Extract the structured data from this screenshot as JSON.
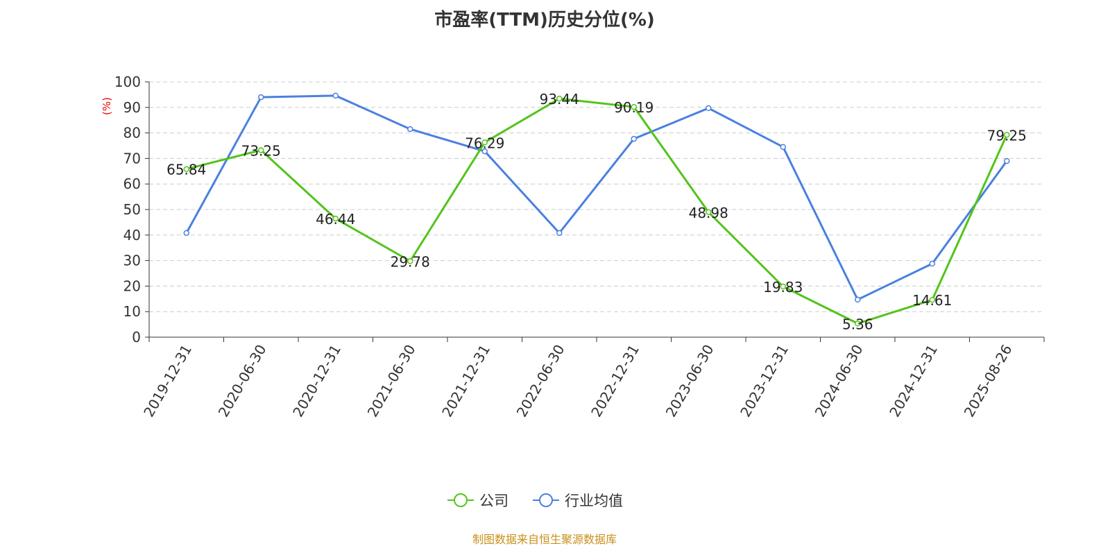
{
  "chart_data": {
    "type": "line",
    "title": "市盈率(TTM)历史分位(%)",
    "ylabel": "(%)",
    "ylim": [
      0,
      100
    ],
    "yticks": [
      0,
      10,
      20,
      30,
      40,
      50,
      60,
      70,
      80,
      90,
      100
    ],
    "grid": true,
    "legend_position": "bottom",
    "categories": [
      "2019-12-31",
      "2020-06-30",
      "2020-12-31",
      "2021-06-30",
      "2021-12-31",
      "2022-06-30",
      "2022-12-31",
      "2023-06-30",
      "2023-12-31",
      "2024-06-30",
      "2024-12-31",
      "2025-08-26"
    ],
    "series": [
      {
        "name": "公司",
        "color": "#52c41a",
        "labels": true,
        "values": [
          65.84,
          73.25,
          46.44,
          29.78,
          76.29,
          93.44,
          90.19,
          48.98,
          19.83,
          5.36,
          14.61,
          79.25
        ]
      },
      {
        "name": "行业均值",
        "color": "#4a80e0",
        "labels": false,
        "values": [
          40.8,
          94.0,
          94.6,
          81.5,
          72.8,
          40.8,
          77.7,
          89.7,
          74.5,
          14.7,
          28.8,
          69.0
        ]
      }
    ]
  },
  "footer": "制图数据来自恒生聚源数据库"
}
